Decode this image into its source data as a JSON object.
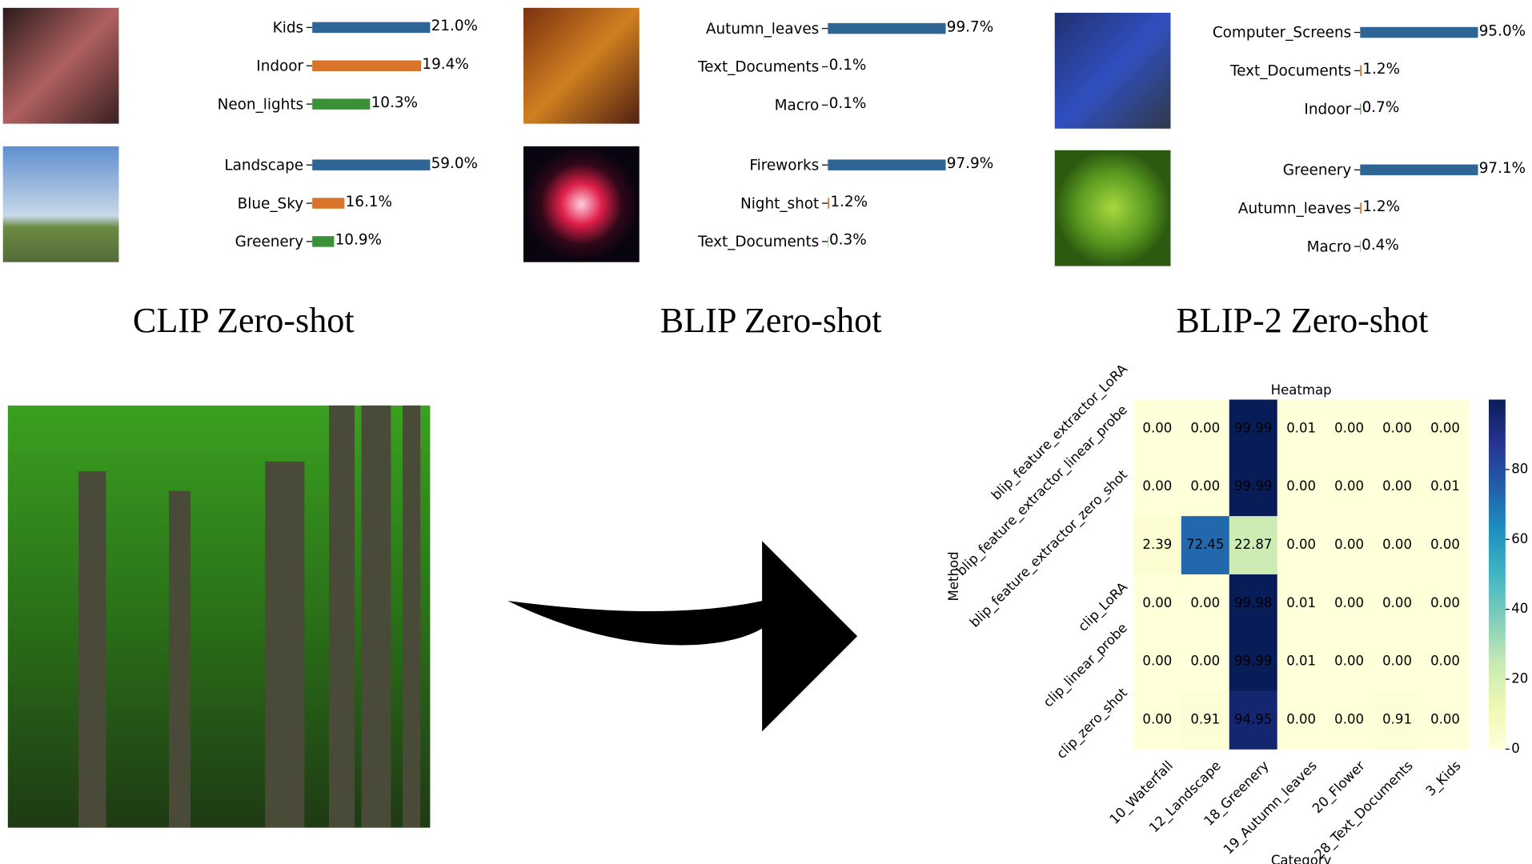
{
  "sections": [
    "CLIP Zero-shot",
    "BLIP Zero-shot",
    "BLIP-2 Zero-shot"
  ],
  "chart_data": [
    {
      "type": "barh",
      "categories": [
        "Kids",
        "Indoor",
        "Neon_lights"
      ],
      "values": [
        21.0,
        19.4,
        10.3
      ],
      "value_labels": [
        "21.0%",
        "19.4%",
        "10.3%"
      ],
      "colors": [
        "#2e6595",
        "#d8752b",
        "#3a9137"
      ],
      "xlim": [
        0,
        21.0
      ]
    },
    {
      "type": "barh",
      "categories": [
        "Landscape",
        "Blue_Sky",
        "Greenery"
      ],
      "values": [
        59.0,
        16.1,
        10.9
      ],
      "value_labels": [
        "59.0%",
        "16.1%",
        "10.9%"
      ],
      "colors": [
        "#2e6595",
        "#d8752b",
        "#3a9137"
      ],
      "xlim": [
        0,
        59.0
      ]
    },
    {
      "type": "barh",
      "categories": [
        "Autumn_leaves",
        "Text_Documents",
        "Macro"
      ],
      "values": [
        99.7,
        0.1,
        0.1
      ],
      "value_labels": [
        "99.7%",
        "0.1%",
        "0.1%"
      ],
      "colors": [
        "#2e6595",
        "#d8752b",
        "#3a9137"
      ],
      "xlim": [
        0,
        99.7
      ]
    },
    {
      "type": "barh",
      "categories": [
        "Fireworks",
        "Night_shot",
        "Text_Documents"
      ],
      "values": [
        97.9,
        1.2,
        0.3
      ],
      "value_labels": [
        "97.9%",
        "1.2%",
        "0.3%"
      ],
      "colors": [
        "#2e6595",
        "#d8752b",
        "#3a9137"
      ],
      "xlim": [
        0,
        97.9
      ]
    },
    {
      "type": "barh",
      "categories": [
        "Computer_Screens",
        "Text_Documents",
        "Indoor"
      ],
      "values": [
        95.0,
        1.2,
        0.7
      ],
      "value_labels": [
        "95.0%",
        "1.2%",
        "0.7%"
      ],
      "colors": [
        "#2e6595",
        "#d8752b",
        "#3a9137"
      ],
      "xlim": [
        0,
        95.0
      ]
    },
    {
      "type": "barh",
      "categories": [
        "Greenery",
        "Autumn_leaves",
        "Macro"
      ],
      "values": [
        97.1,
        1.2,
        0.4
      ],
      "value_labels": [
        "97.1%",
        "1.2%",
        "0.4%"
      ],
      "colors": [
        "#2e6595",
        "#d8752b",
        "#3a9137"
      ],
      "xlim": [
        0,
        97.1
      ]
    },
    {
      "type": "heatmap",
      "title": "Heatmap",
      "xlabel": "Category",
      "ylabel": "Method",
      "x_categories": [
        "10_Waterfall",
        "12_Landscape",
        "18_Greenery",
        "19_Autumn_leaves",
        "20_Flower",
        "28_Text_Documents",
        "3_Kids"
      ],
      "y_categories": [
        "blip_feature_extractor_LoRA",
        "blip_feature_extractor_linear_probe",
        "blip_feature_extractor_zero_shot",
        "clip_LoRA",
        "clip_linear_probe",
        "clip_zero_shot"
      ],
      "values": [
        [
          0,
          0,
          99.99,
          0.01,
          0,
          0,
          0
        ],
        [
          0,
          0,
          99.99,
          0,
          0,
          0,
          0.01
        ],
        [
          2.39,
          72.45,
          22.87,
          0,
          0,
          0,
          0
        ],
        [
          0,
          0,
          99.98,
          0.01,
          0,
          0,
          0
        ],
        [
          0,
          0,
          99.99,
          0.01,
          0,
          0,
          0
        ],
        [
          0,
          0.91,
          94.95,
          0,
          0,
          0.91,
          0
        ]
      ],
      "value_labels": [
        [
          "0.00",
          "0.00",
          "99.99",
          "0.01",
          "0.00",
          "0.00",
          "0.00"
        ],
        [
          "0.00",
          "0.00",
          "99.99",
          "0.00",
          "0.00",
          "0.00",
          "0.01"
        ],
        [
          "2.39",
          "72.45",
          "22.87",
          "0.00",
          "0.00",
          "0.00",
          "0.00"
        ],
        [
          "0.00",
          "0.00",
          "99.98",
          "0.01",
          "0.00",
          "0.00",
          "0.00"
        ],
        [
          "0.00",
          "0.00",
          "99.99",
          "0.01",
          "0.00",
          "0.00",
          "0.00"
        ],
        [
          "0.00",
          "0.91",
          "94.95",
          "0.00",
          "0.00",
          "0.91",
          "0.00"
        ]
      ],
      "colormap": "YlGnBu",
      "zlim": [
        0,
        100
      ],
      "colorbar_ticks": [
        0,
        20,
        40,
        60,
        80
      ]
    }
  ]
}
